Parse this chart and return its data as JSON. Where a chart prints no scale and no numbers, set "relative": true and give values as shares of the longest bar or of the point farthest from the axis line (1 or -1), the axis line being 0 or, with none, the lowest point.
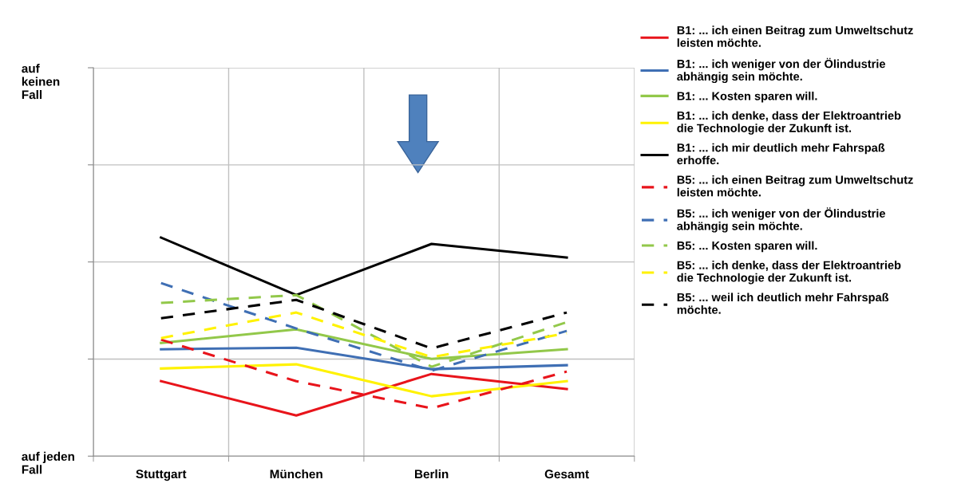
{
  "chart_data": {
    "type": "line",
    "relative": true,
    "grid": true,
    "legend": "right",
    "line_style": "solid",
    "marker": "none",
    "categories": [
      "Stuttgart",
      "München",
      "Berlin",
      "Gesamt"
    ],
    "annotations": [
      "auf\nkeinen\nFall",
      "auf jeden\nFall"
    ],
    "series": [
      {
        "name": "B1: ... ich einen Beitrag zum Umweltschutz\nleisten möchte.",
        "color": "#e8141b",
        "values": [
          0.343,
          0.186,
          0.376,
          0.307
        ]
      },
      {
        "name": "B1: ... ich weniger von der Ölindustrie\nabhängig sein möchte.",
        "color": "#3f6fb4",
        "values": [
          0.489,
          0.496,
          0.398,
          0.416
        ]
      },
      {
        "name": "B1: ... Kosten sparen will.",
        "color": "#92c84a",
        "values": [
          0.518,
          0.58,
          0.445,
          0.489
        ]
      },
      {
        "name": "B1: ... ich denke, dass der Elektroantrieb\ndie Technologie der Zukunft ist.",
        "color": "#fff200",
        "values": [
          0.401,
          0.42,
          0.274,
          0.343
        ]
      },
      {
        "name": "B1: ... ich mir deutlich mehr Fahrspaß\nerhoffe.",
        "color": "#000000",
        "values": [
          1.0,
          0.737,
          0.971,
          0.909
        ]
      },
      {
        "name": "B5: ... ich einen Beitrag zum Umweltschutz\nleisten möchte.",
        "color": "#e8141b",
        "line_style": "dashed",
        "values": [
          0.533,
          0.343,
          0.219,
          0.387
        ]
      },
      {
        "name": "B5: ... ich weniger von der Ölindustrie\nabhängig sein möchte.",
        "color": "#3f6fb4",
        "line_style": "dashed",
        "values": [
          0.792,
          0.584,
          0.391,
          0.573
        ]
      },
      {
        "name": "B5: ... Kosten sparen will.",
        "color": "#92c84a",
        "line_style": "dashed",
        "values": [
          0.701,
          0.737,
          0.409,
          0.613
        ]
      },
      {
        "name": "B5: ... ich denke, dass der Elektroantrieb\ndie Technologie der Zukunft ist.",
        "color": "#fff200",
        "line_style": "dashed",
        "values": [
          0.54,
          0.657,
          0.453,
          0.562
        ]
      },
      {
        "name": "B5: ... weil ich deutlich mehr Fahrspaß\nmöchte.",
        "color": "#000000",
        "line_style": "dashed",
        "values": [
          0.631,
          0.715,
          0.493,
          0.657
        ]
      }
    ]
  }
}
